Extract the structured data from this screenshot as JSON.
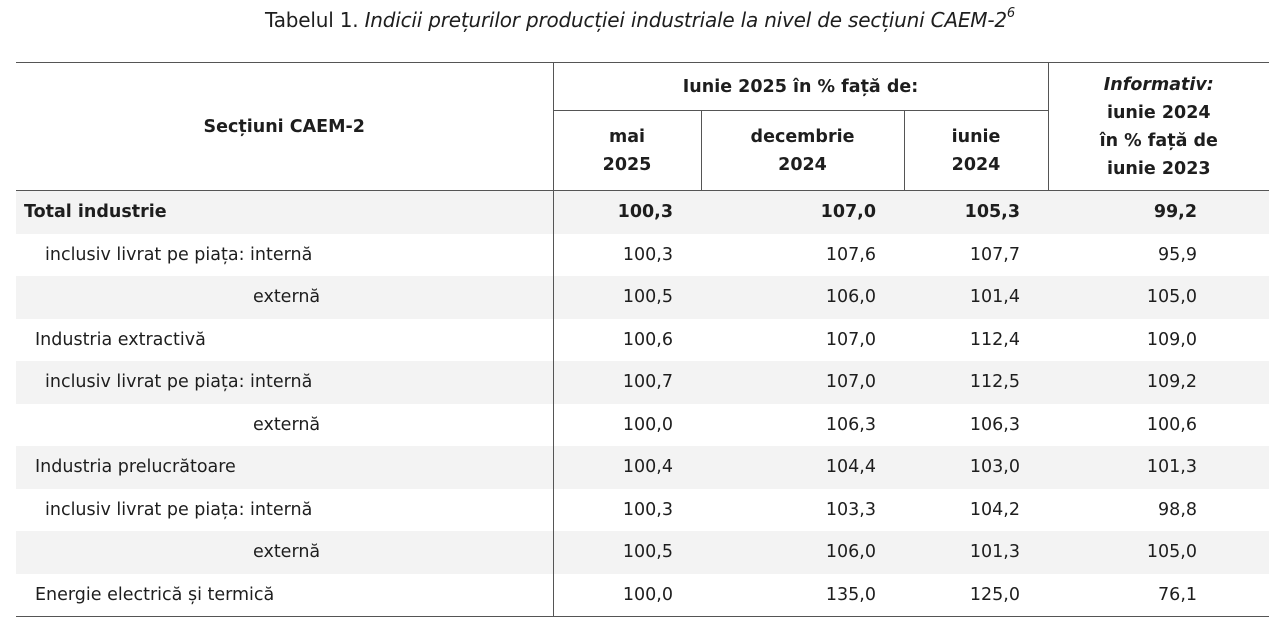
{
  "caption": {
    "prefix": "Tabelul 1.",
    "title": "Indicii prețurilor producției industriale la nivel de secțiuni CAEM-2",
    "footnote": "6"
  },
  "table": {
    "header": {
      "sections_label": "Secțiuni CAEM-2",
      "group_label": "Iunie 2025 în % față de:",
      "col1": [
        "mai",
        "2025"
      ],
      "col2": [
        "decembrie",
        "2024"
      ],
      "col3": [
        "iunie",
        "2024"
      ],
      "info": [
        "Informativ:",
        "iunie 2024",
        "în % față de",
        "iunie 2023"
      ]
    },
    "rows": [
      {
        "label": "Total industrie",
        "v": [
          "100,3",
          "107,0",
          "105,3",
          "99,2"
        ]
      },
      {
        "label": "inclusiv livrat pe piața:  internă",
        "v": [
          "100,3",
          "107,6",
          "107,7",
          "95,9"
        ]
      },
      {
        "label": "externă",
        "v": [
          "100,5",
          "106,0",
          "101,4",
          "105,0"
        ]
      },
      {
        "label": "Industria extractivă",
        "v": [
          "100,6",
          "107,0",
          "112,4",
          "109,0"
        ]
      },
      {
        "label": "inclusiv livrat pe piața:  internă",
        "v": [
          "100,7",
          "107,0",
          "112,5",
          "109,2"
        ]
      },
      {
        "label": "externă",
        "v": [
          "100,0",
          "106,3",
          "106,3",
          "100,6"
        ]
      },
      {
        "label": "Industria prelucrătoare",
        "v": [
          "100,4",
          "104,4",
          "103,0",
          "101,3"
        ]
      },
      {
        "label": "inclusiv livrat pe piața:  internă",
        "v": [
          "100,3",
          "103,3",
          "104,2",
          "98,8"
        ]
      },
      {
        "label": "externă",
        "v": [
          "100,5",
          "106,0",
          "101,3",
          "105,0"
        ]
      },
      {
        "label": "Energie electrică și termică",
        "v": [
          "100,0",
          "135,0",
          "125,0",
          "76,1"
        ]
      }
    ]
  }
}
